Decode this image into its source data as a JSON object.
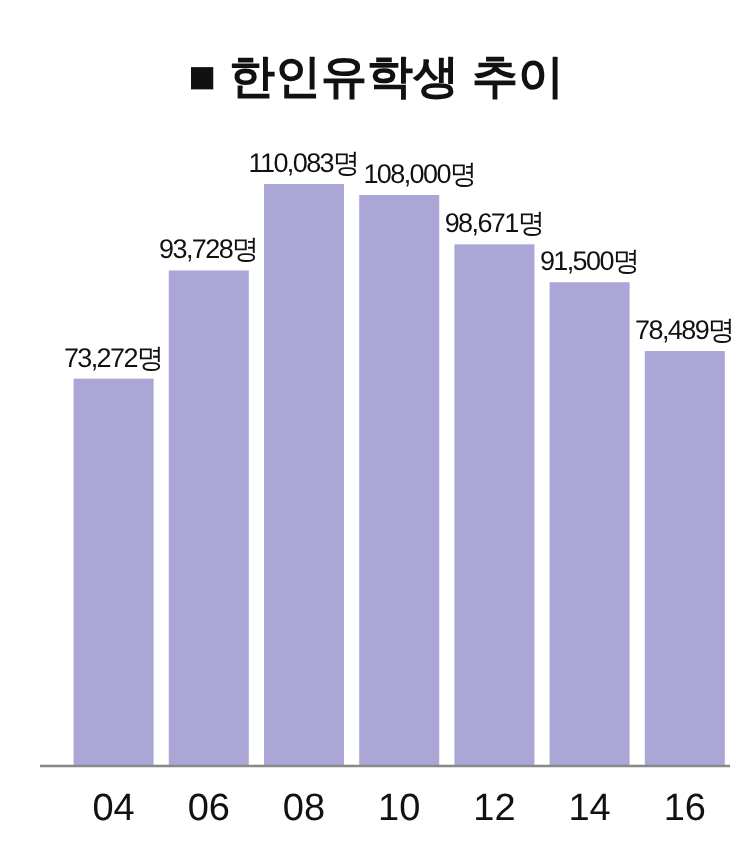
{
  "chart_data": {
    "type": "bar",
    "title": "■ 한인유학생 추이",
    "categories": [
      "04",
      "06",
      "08",
      "10",
      "12",
      "14",
      "16"
    ],
    "values": [
      73272,
      93728,
      110083,
      108000,
      98671,
      91500,
      78489
    ],
    "value_labels": [
      "73,272명",
      "93,728명",
      "110,083명",
      "108,000명",
      "98,671명",
      "91,500명",
      "78,489명"
    ],
    "color": "#aaa7d6"
  }
}
